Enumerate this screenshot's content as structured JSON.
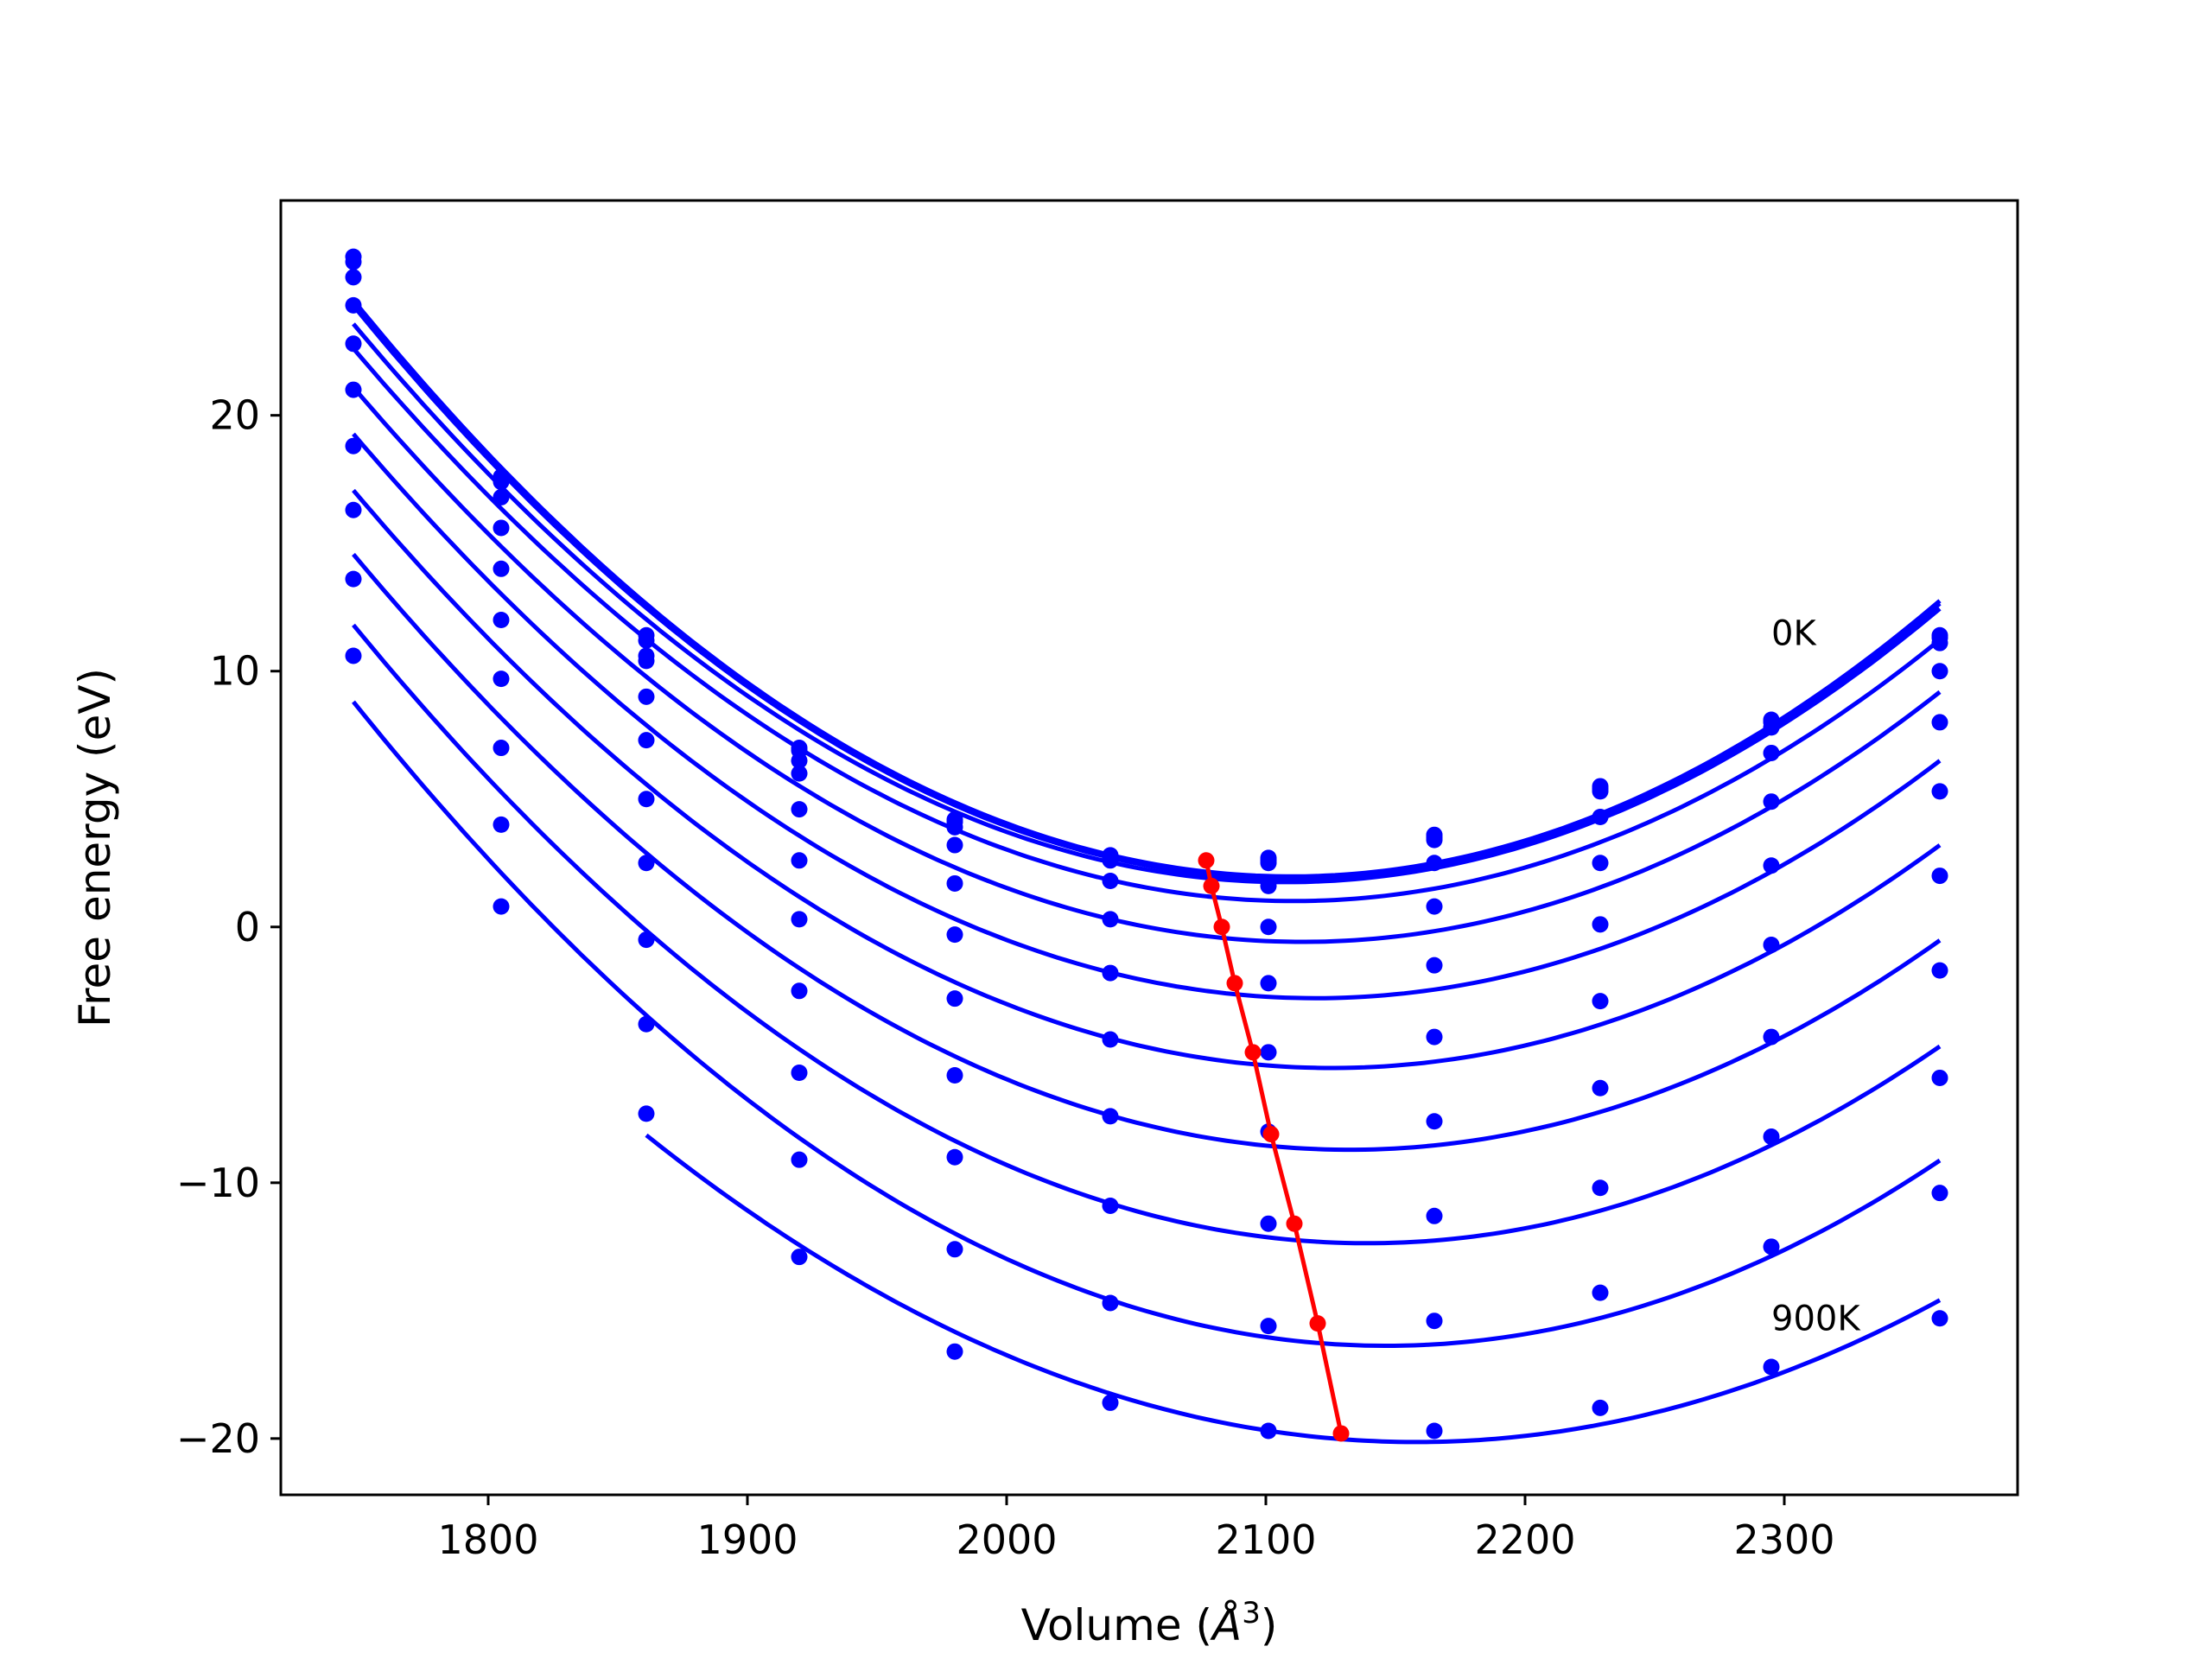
{
  "chart_data": {
    "type": "line",
    "xlabel_prefix": "Volume (",
    "xlabel_unit_base": "Å",
    "xlabel_unit_exp": "3",
    "xlabel_suffix": ")",
    "ylabel": "Free energy (eV)",
    "xlim": [
      1720,
      2390
    ],
    "ylim": [
      -22.2,
      28.4
    ],
    "x_ticks": [
      1800,
      1900,
      2000,
      2100,
      2200,
      2300
    ],
    "y_ticks": [
      -20,
      -10,
      0,
      10,
      20
    ],
    "y_tick_labels": [
      "−20",
      "−10",
      "0",
      "10",
      "20"
    ],
    "grid": false,
    "annotations": [
      {
        "text": "0K",
        "x": 2295,
        "y": 11.5
      },
      {
        "text": "900K",
        "x": 2295,
        "y": -15.3
      }
    ],
    "x": [
      1748,
      1805,
      1861,
      1920,
      1980,
      2040,
      2101,
      2165,
      2229,
      2295,
      2360
    ],
    "series": [
      {
        "values": [
          26.2,
          17.6,
          11.4,
          7.0,
          4.2,
          2.8,
          2.7,
          3.6,
          5.5,
          8.1,
          11.4
        ]
      },
      {
        "values": [
          26.0,
          17.4,
          11.2,
          6.9,
          4.1,
          2.7,
          2.6,
          3.5,
          5.4,
          8.0,
          11.3
        ]
      },
      {
        "values": [
          25.4,
          16.8,
          10.6,
          6.5,
          3.9,
          2.6,
          2.5,
          3.4,
          5.3,
          7.8,
          11.1
        ]
      },
      {
        "values": [
          24.3,
          15.6,
          10.4,
          6.0,
          3.2,
          1.8,
          1.6,
          2.5,
          4.3,
          6.8,
          10.0
        ]
      },
      {
        "values": [
          22.8,
          14.0,
          9.0,
          4.6,
          1.7,
          0.3,
          0.0,
          0.8,
          2.5,
          4.9,
          8.0
        ]
      },
      {
        "values": [
          21.0,
          12.0,
          7.3,
          2.6,
          -0.3,
          -1.8,
          -2.2,
          -1.5,
          0.1,
          2.4,
          5.3
        ]
      },
      {
        "values": [
          18.8,
          9.7,
          5.0,
          0.3,
          -2.8,
          -4.4,
          -4.9,
          -4.3,
          -2.9,
          -0.7,
          2.0
        ]
      },
      {
        "values": [
          16.3,
          7.0,
          2.5,
          -2.5,
          -5.8,
          -7.4,
          -8.0,
          -7.6,
          -6.3,
          -4.3,
          -1.7
        ]
      },
      {
        "values": [
          13.6,
          4.0,
          -0.5,
          -5.7,
          -9.0,
          -10.9,
          -11.6,
          -11.3,
          -10.2,
          -8.2,
          -5.9
        ]
      },
      {
        "values": [
          10.6,
          0.8,
          -3.8,
          -9.1,
          -12.6,
          -14.7,
          -15.6,
          -15.4,
          -14.3,
          -12.5,
          -10.4
        ]
      },
      {
        "values": [
          null,
          null,
          -7.3,
          -12.9,
          -16.6,
          -18.6,
          -19.7,
          -19.7,
          -18.8,
          -17.2,
          -15.3
        ]
      }
    ],
    "minima": {
      "x": [
        2077,
        2079,
        2083,
        2088,
        2095,
        2102,
        2111,
        2120,
        2129
      ],
      "y": [
        2.6,
        1.6,
        0.0,
        -2.2,
        -4.9,
        -8.1,
        -11.6,
        -15.5,
        -19.8
      ]
    },
    "colors": {
      "curves": "#0000ff",
      "minima": "#ff0000",
      "axes": "#000000"
    }
  }
}
